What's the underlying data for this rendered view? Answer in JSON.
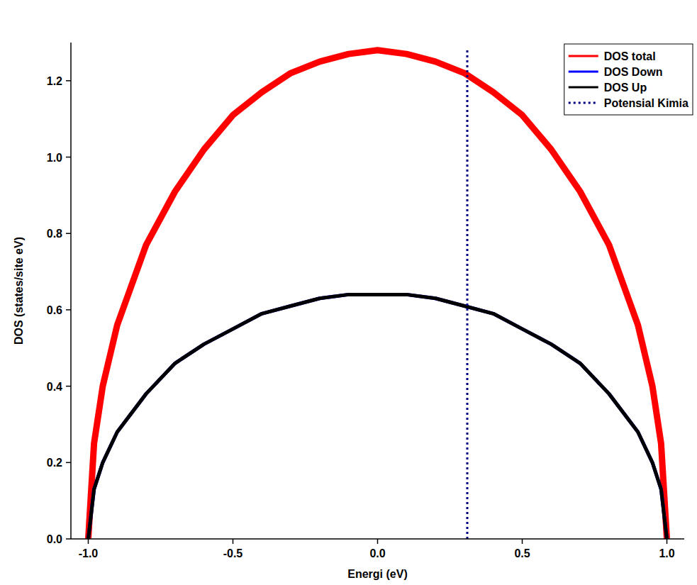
{
  "chart_data": {
    "type": "line",
    "x_label": "Energi (eV)",
    "y_label": "DOS (states/site eV)",
    "x": [
      -1,
      -0.98,
      -0.95,
      -0.9,
      -0.8,
      -0.7,
      -0.6,
      -0.5,
      -0.4,
      -0.3,
      -0.2,
      -0.1,
      0,
      0.1,
      0.2,
      0.3,
      0.4,
      0.5,
      0.6,
      0.7,
      0.8,
      0.9,
      0.95,
      0.98,
      1
    ],
    "series": [
      {
        "name": "DOS total",
        "color": "#ff0000",
        "line_style": "solid",
        "values": [
          0,
          0.25,
          0.4,
          0.56,
          0.77,
          0.91,
          1.02,
          1.11,
          1.17,
          1.22,
          1.25,
          1.27,
          1.28,
          1.27,
          1.25,
          1.22,
          1.17,
          1.11,
          1.02,
          0.91,
          0.77,
          0.56,
          0.4,
          0.25,
          0
        ]
      },
      {
        "name": "DOS Down",
        "color": "#0000ff",
        "line_style": "solid",
        "values": [
          0,
          0.13,
          0.2,
          0.28,
          0.38,
          0.46,
          0.51,
          0.55,
          0.59,
          0.61,
          0.63,
          0.64,
          0.64,
          0.64,
          0.63,
          0.61,
          0.59,
          0.55,
          0.51,
          0.46,
          0.38,
          0.28,
          0.2,
          0.13,
          0
        ]
      },
      {
        "name": "DOS Up",
        "color": "#000000",
        "line_style": "solid",
        "values": [
          0,
          0.13,
          0.2,
          0.28,
          0.38,
          0.46,
          0.51,
          0.55,
          0.59,
          0.61,
          0.63,
          0.64,
          0.64,
          0.64,
          0.63,
          0.61,
          0.59,
          0.55,
          0.51,
          0.46,
          0.38,
          0.28,
          0.2,
          0.13,
          0
        ]
      },
      {
        "name": "Potensial Kimia",
        "color": "#000080",
        "line_style": "dotted",
        "x": [
          0.31,
          0.31
        ],
        "values": [
          0,
          1.28
        ]
      }
    ],
    "xlim": [
      -1.06,
      1.06
    ],
    "xticks": [
      {
        "value": -1,
        "label": "-1.0"
      },
      {
        "value": -0.5,
        "label": "-0.5"
      },
      {
        "value": 0,
        "label": "0.0"
      },
      {
        "value": 0.5,
        "label": "0.5"
      },
      {
        "value": 1,
        "label": "1.0"
      }
    ],
    "ylim": [
      0,
      1.3
    ],
    "yticks": [
      {
        "value": 0,
        "label": "0.0"
      },
      {
        "value": 0.2,
        "label": "0.2"
      },
      {
        "value": 0.4,
        "label": "0.4"
      },
      {
        "value": 0.6,
        "label": "0.6"
      },
      {
        "value": 0.8,
        "label": "0.8"
      },
      {
        "value": 1,
        "label": "1.0"
      },
      {
        "value": 1.2,
        "label": "1.2"
      }
    ],
    "grid": false,
    "legend": "top-right"
  }
}
